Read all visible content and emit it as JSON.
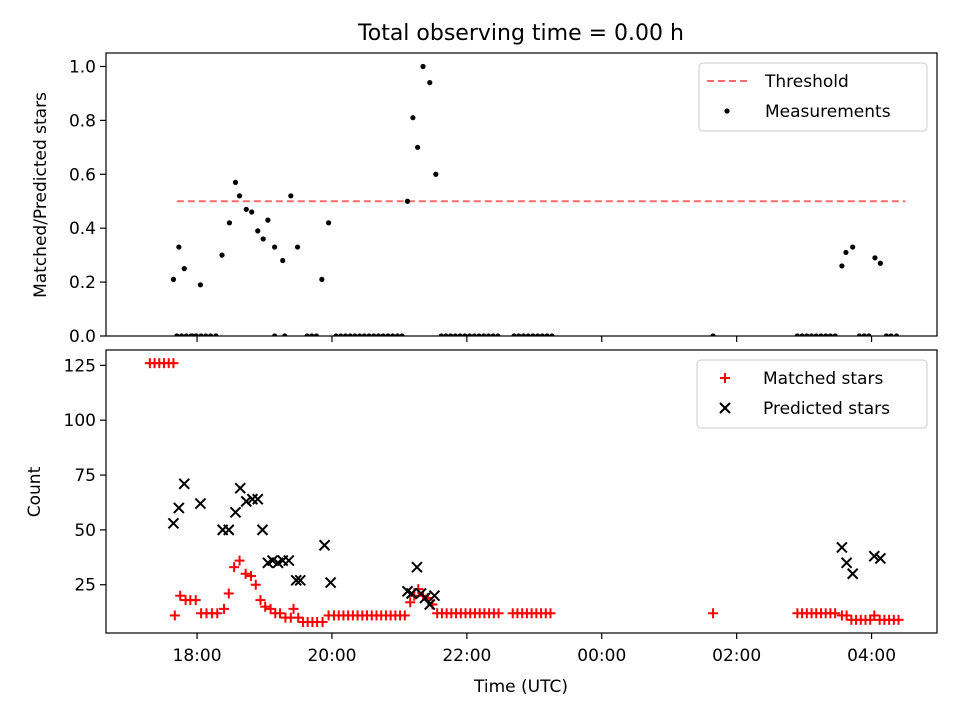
{
  "title": "Total observing time = 0.00 h",
  "x_axis": {
    "label": "Time (UTC)",
    "tick_labels": [
      "18:00",
      "20:00",
      "22:00",
      "00:00",
      "02:00",
      "04:00"
    ],
    "tick_hours": [
      18,
      20,
      22,
      24,
      26,
      28
    ],
    "range_hours": [
      16.65,
      28.97
    ]
  },
  "colors": {
    "threshold": "#ff6b6b",
    "measurements": "#000000",
    "matched": "#ff0000",
    "predicted": "#000000"
  },
  "chart_data": [
    {
      "type": "scatter",
      "panel": "top",
      "ylabel": "Matched/Predicted stars",
      "ylim": [
        0,
        1.05
      ],
      "yticks": [
        0.0,
        0.2,
        0.4,
        0.6,
        0.8,
        1.0
      ],
      "ytick_labels": [
        "0.0",
        "0.2",
        "0.4",
        "0.6",
        "0.8",
        "1.0"
      ],
      "legend": {
        "placement": "top-right",
        "entries": [
          "Threshold",
          "Measurements"
        ]
      },
      "threshold": {
        "name": "Threshold",
        "y": 0.5,
        "x_range": [
          17.7,
          28.5
        ]
      },
      "series": [
        {
          "name": "Measurements",
          "marker": "dot",
          "points": [
            [
              17.7,
              0
            ],
            [
              17.77,
              0
            ],
            [
              17.84,
              0
            ],
            [
              17.91,
              0
            ],
            [
              17.98,
              0
            ],
            [
              18.06,
              0
            ],
            [
              17.65,
              0.21
            ],
            [
              17.73,
              0.33
            ],
            [
              17.81,
              0.25
            ],
            [
              18.05,
              0.19
            ],
            [
              17.93,
              0
            ],
            [
              17.99,
              0
            ],
            [
              18.13,
              0
            ],
            [
              18.2,
              0
            ],
            [
              18.28,
              0
            ],
            [
              18.37,
              0.3
            ],
            [
              18.48,
              0.42
            ],
            [
              18.57,
              0.57
            ],
            [
              18.63,
              0.52
            ],
            [
              18.73,
              0.47
            ],
            [
              18.81,
              0.46
            ],
            [
              18.9,
              0.39
            ],
            [
              18.98,
              0.36
            ],
            [
              19.05,
              0.43
            ],
            [
              19.15,
              0.33
            ],
            [
              19.27,
              0.28
            ],
            [
              19.39,
              0.52
            ],
            [
              19.49,
              0.33
            ],
            [
              19.85,
              0.21
            ],
            [
              19.95,
              0.42
            ],
            [
              19.15,
              0
            ],
            [
              19.3,
              0
            ],
            [
              19.63,
              0
            ],
            [
              19.7,
              0
            ],
            [
              19.77,
              0
            ],
            [
              20.06,
              0
            ],
            [
              20.13,
              0
            ],
            [
              20.2,
              0
            ],
            [
              20.27,
              0
            ],
            [
              20.34,
              0
            ],
            [
              20.41,
              0
            ],
            [
              20.48,
              0
            ],
            [
              20.55,
              0
            ],
            [
              20.62,
              0
            ],
            [
              20.69,
              0
            ],
            [
              20.76,
              0
            ],
            [
              20.83,
              0
            ],
            [
              20.9,
              0
            ],
            [
              20.97,
              0
            ],
            [
              21.04,
              0
            ],
            [
              21.12,
              0.5
            ],
            [
              21.2,
              0.81
            ],
            [
              21.27,
              0.7
            ],
            [
              21.35,
              1.0
            ],
            [
              21.45,
              0.94
            ],
            [
              21.54,
              0.6
            ],
            [
              21.62,
              0
            ],
            [
              21.69,
              0
            ],
            [
              21.76,
              0
            ],
            [
              21.83,
              0
            ],
            [
              21.9,
              0
            ],
            [
              21.97,
              0
            ],
            [
              22.04,
              0
            ],
            [
              22.11,
              0
            ],
            [
              22.18,
              0
            ],
            [
              22.25,
              0
            ],
            [
              22.32,
              0
            ],
            [
              22.39,
              0
            ],
            [
              22.46,
              0
            ],
            [
              22.7,
              0
            ],
            [
              22.77,
              0
            ],
            [
              22.84,
              0
            ],
            [
              22.91,
              0
            ],
            [
              22.98,
              0
            ],
            [
              23.05,
              0
            ],
            [
              23.12,
              0
            ],
            [
              23.19,
              0
            ],
            [
              23.26,
              0
            ],
            [
              25.65,
              0
            ],
            [
              26.9,
              0
            ],
            [
              26.97,
              0
            ],
            [
              27.04,
              0
            ],
            [
              27.11,
              0
            ],
            [
              27.18,
              0
            ],
            [
              27.25,
              0
            ],
            [
              27.32,
              0
            ],
            [
              27.39,
              0
            ],
            [
              27.46,
              0
            ],
            [
              27.56,
              0.26
            ],
            [
              27.62,
              0.31
            ],
            [
              27.72,
              0.33
            ],
            [
              27.82,
              0
            ],
            [
              27.89,
              0
            ],
            [
              27.96,
              0
            ],
            [
              28.05,
              0.29
            ],
            [
              28.13,
              0.27
            ],
            [
              28.22,
              0
            ],
            [
              28.29,
              0
            ],
            [
              28.37,
              0
            ]
          ]
        }
      ]
    },
    {
      "type": "scatter",
      "panel": "bottom",
      "ylabel": "Count",
      "ylim": [
        3,
        132
      ],
      "yticks": [
        25,
        50,
        75,
        100,
        125
      ],
      "ytick_labels": [
        "25",
        "50",
        "75",
        "100",
        "125"
      ],
      "legend": {
        "placement": "top-right",
        "entries": [
          "Matched stars",
          "Predicted stars"
        ]
      },
      "series": [
        {
          "name": "Matched stars",
          "marker": "plus",
          "points": [
            [
              17.3,
              126
            ],
            [
              17.37,
              126
            ],
            [
              17.44,
              126
            ],
            [
              17.51,
              126
            ],
            [
              17.58,
              126
            ],
            [
              17.65,
              126
            ],
            [
              17.67,
              11
            ],
            [
              17.75,
              20
            ],
            [
              17.83,
              18
            ],
            [
              17.9,
              18
            ],
            [
              17.98,
              18
            ],
            [
              18.06,
              12
            ],
            [
              18.14,
              12
            ],
            [
              18.22,
              12
            ],
            [
              18.3,
              12
            ],
            [
              18.4,
              14
            ],
            [
              18.47,
              21
            ],
            [
              18.55,
              33
            ],
            [
              18.63,
              36
            ],
            [
              18.72,
              30
            ],
            [
              18.8,
              29
            ],
            [
              18.87,
              25
            ],
            [
              18.94,
              18
            ],
            [
              19.01,
              15
            ],
            [
              19.09,
              14
            ],
            [
              19.16,
              12
            ],
            [
              19.23,
              12
            ],
            [
              19.31,
              10
            ],
            [
              19.39,
              10
            ],
            [
              19.43,
              14
            ],
            [
              19.5,
              10
            ],
            [
              19.57,
              8
            ],
            [
              19.64,
              8
            ],
            [
              19.71,
              8
            ],
            [
              19.78,
              8
            ],
            [
              19.86,
              8
            ],
            [
              19.95,
              11
            ],
            [
              20.03,
              11
            ],
            [
              20.1,
              11
            ],
            [
              20.17,
              11
            ],
            [
              20.24,
              11
            ],
            [
              20.31,
              11
            ],
            [
              20.38,
              11
            ],
            [
              20.45,
              11
            ],
            [
              20.52,
              11
            ],
            [
              20.59,
              11
            ],
            [
              20.66,
              11
            ],
            [
              20.73,
              11
            ],
            [
              20.8,
              11
            ],
            [
              20.87,
              11
            ],
            [
              20.94,
              11
            ],
            [
              21.01,
              11
            ],
            [
              21.08,
              11
            ],
            [
              21.16,
              17
            ],
            [
              21.22,
              20
            ],
            [
              21.28,
              23
            ],
            [
              21.35,
              20
            ],
            [
              21.42,
              19
            ],
            [
              21.49,
              16
            ],
            [
              21.56,
              12
            ],
            [
              21.63,
              12
            ],
            [
              21.7,
              12
            ],
            [
              21.77,
              12
            ],
            [
              21.84,
              12
            ],
            [
              21.91,
              12
            ],
            [
              21.98,
              12
            ],
            [
              22.05,
              12
            ],
            [
              22.12,
              12
            ],
            [
              22.19,
              12
            ],
            [
              22.26,
              12
            ],
            [
              22.33,
              12
            ],
            [
              22.4,
              12
            ],
            [
              22.47,
              12
            ],
            [
              22.68,
              12
            ],
            [
              22.75,
              12
            ],
            [
              22.82,
              12
            ],
            [
              22.89,
              12
            ],
            [
              22.96,
              12
            ],
            [
              23.03,
              12
            ],
            [
              23.1,
              12
            ],
            [
              23.17,
              12
            ],
            [
              23.24,
              12
            ],
            [
              25.65,
              12
            ],
            [
              26.9,
              12
            ],
            [
              26.97,
              12
            ],
            [
              27.04,
              12
            ],
            [
              27.11,
              12
            ],
            [
              27.18,
              12
            ],
            [
              27.25,
              12
            ],
            [
              27.32,
              12
            ],
            [
              27.39,
              12
            ],
            [
              27.46,
              12
            ],
            [
              27.56,
              11
            ],
            [
              27.63,
              11
            ],
            [
              27.7,
              9
            ],
            [
              27.77,
              9
            ],
            [
              27.84,
              9
            ],
            [
              27.91,
              9
            ],
            [
              27.98,
              9
            ],
            [
              28.04,
              11
            ],
            [
              28.12,
              9
            ],
            [
              28.19,
              9
            ],
            [
              28.26,
              9
            ],
            [
              28.33,
              9
            ],
            [
              28.4,
              9
            ]
          ]
        },
        {
          "name": "Predicted stars",
          "marker": "x",
          "points": [
            [
              17.65,
              53
            ],
            [
              17.73,
              60
            ],
            [
              17.81,
              71
            ],
            [
              18.05,
              62
            ],
            [
              18.38,
              50
            ],
            [
              18.47,
              50
            ],
            [
              18.57,
              58
            ],
            [
              18.64,
              69
            ],
            [
              18.73,
              63
            ],
            [
              18.82,
              64
            ],
            [
              18.9,
              64
            ],
            [
              18.97,
              50
            ],
            [
              19.05,
              35
            ],
            [
              19.12,
              36
            ],
            [
              19.2,
              35
            ],
            [
              19.27,
              36
            ],
            [
              19.36,
              36
            ],
            [
              19.47,
              27
            ],
            [
              19.53,
              27
            ],
            [
              19.89,
              43
            ],
            [
              19.98,
              26
            ],
            [
              21.12,
              22
            ],
            [
              21.18,
              21
            ],
            [
              21.26,
              33
            ],
            [
              21.32,
              21
            ],
            [
              21.38,
              19
            ],
            [
              21.45,
              16
            ],
            [
              21.52,
              20
            ],
            [
              27.56,
              42
            ],
            [
              27.63,
              35
            ],
            [
              27.72,
              30
            ],
            [
              28.04,
              38
            ],
            [
              28.13,
              37
            ]
          ]
        }
      ]
    }
  ]
}
